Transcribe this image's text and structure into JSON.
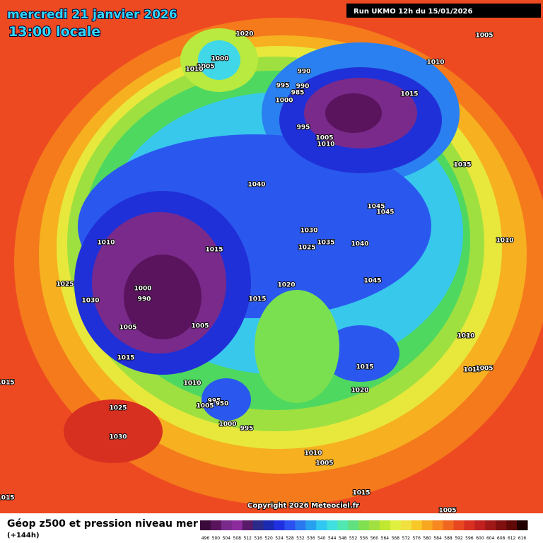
{
  "header": {
    "date": "mercredi 21 janvier 2026",
    "time": "13:00 locale",
    "run": "Run UKMO 12h du 15/01/2026"
  },
  "map": {
    "pressure_labels": [
      "1020",
      "1000",
      "1005",
      "1010",
      "1005",
      "990",
      "995",
      "990",
      "985",
      "1000",
      "995",
      "1010",
      "1015",
      "1005",
      "1010",
      "1035",
      "1040",
      "1045",
      "1045",
      "1010",
      "1010",
      "1015",
      "1030",
      "1025",
      "1035",
      "1040",
      "1025",
      "1000",
      "990",
      "1030",
      "1020",
      "1015",
      "1045",
      "1005",
      "1005",
      "1010",
      "1015",
      "1015",
      "1010",
      "1005",
      "1010",
      "1020",
      "995",
      "950",
      "1005",
      "1025",
      "1000",
      "995",
      "1030",
      "1010",
      "1005",
      "1015",
      "1005",
      "1015",
      "1015"
    ],
    "copyright": "Copyright 2026 Meteociel.fr"
  },
  "footer": {
    "title": "Géop z500 et pression niveau mer",
    "subtitle": "(+144h)"
  },
  "legend": {
    "labels": [
      "496",
      "500",
      "504",
      "508",
      "512",
      "516",
      "520",
      "524",
      "528",
      "532",
      "536",
      "540",
      "544",
      "548",
      "552",
      "556",
      "560",
      "564",
      "568",
      "572",
      "576",
      "580",
      "584",
      "588",
      "592",
      "596",
      "600",
      "604",
      "608",
      "612",
      "616"
    ],
    "colors": [
      "#3a0a3a",
      "#5a145e",
      "#7a2a8a",
      "#8c2c9c",
      "#5a1a6a",
      "#2a2a8a",
      "#1a2ab0",
      "#2030e0",
      "#2a50f0",
      "#2a78f0",
      "#28a0f0",
      "#30c8f0",
      "#40e0e0",
      "#50e8b0",
      "#60e080",
      "#80e050",
      "#a0e040",
      "#c0e830",
      "#e0f040",
      "#f0e040",
      "#f8c828",
      "#f8a820",
      "#f88820",
      "#f06820",
      "#e84820",
      "#d83020",
      "#c02020",
      "#a01818",
      "#801010",
      "#600808",
      "#200000"
    ]
  }
}
